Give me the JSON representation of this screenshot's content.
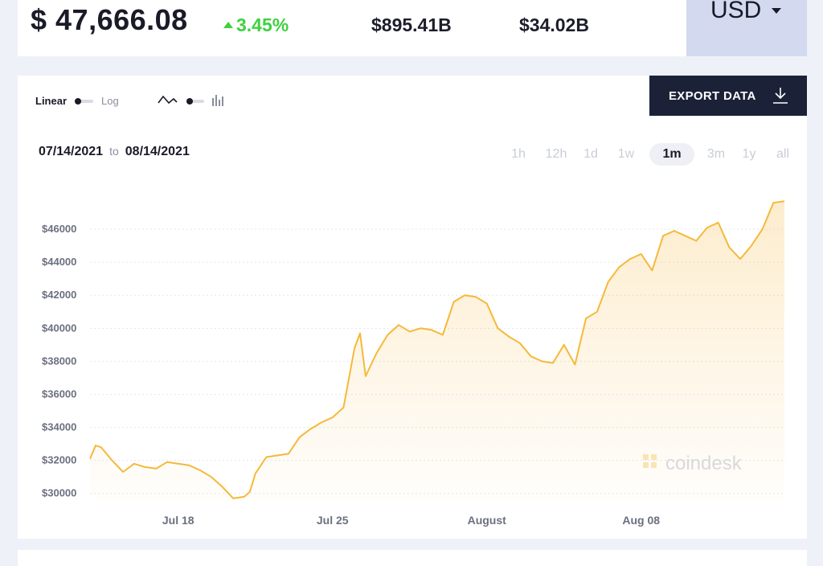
{
  "header": {
    "price": "$ 47,666.08",
    "change": "3.45%",
    "stat1": "$895.41B",
    "stat2": "$34.02B",
    "currency": "USD",
    "change_color": "#3fd13f"
  },
  "controls": {
    "scale_linear": "Linear",
    "scale_log": "Log",
    "export_label": "EXPORT DATA",
    "date_from": "07/14/2021",
    "date_to_word": "to",
    "date_to": "08/14/2021",
    "ranges": [
      "1h",
      "12h",
      "1d",
      "1w",
      "1m",
      "3m",
      "1y",
      "all"
    ],
    "active_range": "1m"
  },
  "watermark": "coindesk",
  "chart_data": {
    "type": "area",
    "line_color": "#f5b93a",
    "ylim": [
      29500,
      48000
    ],
    "yticks": [
      30000,
      32000,
      34000,
      36000,
      38000,
      40000,
      42000,
      44000,
      46000
    ],
    "ytick_labels": [
      "$30000",
      "$32000",
      "$34000",
      "$36000",
      "$38000",
      "$40000",
      "$42000",
      "$44000",
      "$46000"
    ],
    "xticks": [
      "2021-07-18",
      "2021-07-25",
      "2021-08-01",
      "2021-08-08"
    ],
    "xtick_labels": [
      "Jul 18",
      "Jul 25",
      "August",
      "Aug 08"
    ],
    "x": [
      "2021-07-14T00:00",
      "2021-07-14T06:00",
      "2021-07-14T12:00",
      "2021-07-15T00:00",
      "2021-07-15T12:00",
      "2021-07-16T00:00",
      "2021-07-16T12:00",
      "2021-07-17T00:00",
      "2021-07-17T12:00",
      "2021-07-18T00:00",
      "2021-07-18T12:00",
      "2021-07-19T00:00",
      "2021-07-19T12:00",
      "2021-07-20T00:00",
      "2021-07-20T12:00",
      "2021-07-21T00:00",
      "2021-07-21T06:00",
      "2021-07-21T12:00",
      "2021-07-22T00:00",
      "2021-07-22T12:00",
      "2021-07-23T00:00",
      "2021-07-23T12:00",
      "2021-07-24T00:00",
      "2021-07-24T12:00",
      "2021-07-25T00:00",
      "2021-07-25T12:00",
      "2021-07-26T00:00",
      "2021-07-26T06:00",
      "2021-07-26T12:00",
      "2021-07-26T18:00",
      "2021-07-27T00:00",
      "2021-07-27T12:00",
      "2021-07-28T00:00",
      "2021-07-28T12:00",
      "2021-07-29T00:00",
      "2021-07-29T12:00",
      "2021-07-30T00:00",
      "2021-07-30T12:00",
      "2021-07-31T00:00",
      "2021-07-31T12:00",
      "2021-08-01T00:00",
      "2021-08-01T12:00",
      "2021-08-02T00:00",
      "2021-08-02T12:00",
      "2021-08-03T00:00",
      "2021-08-03T12:00",
      "2021-08-04T00:00",
      "2021-08-04T12:00",
      "2021-08-05T00:00",
      "2021-08-05T12:00",
      "2021-08-06T00:00",
      "2021-08-06T12:00",
      "2021-08-07T00:00",
      "2021-08-07T12:00",
      "2021-08-08T00:00",
      "2021-08-08T12:00",
      "2021-08-09T00:00",
      "2021-08-09T12:00",
      "2021-08-10T00:00",
      "2021-08-10T12:00",
      "2021-08-11T00:00",
      "2021-08-11T12:00",
      "2021-08-12T00:00",
      "2021-08-12T12:00",
      "2021-08-13T00:00",
      "2021-08-13T12:00",
      "2021-08-14T00:00",
      "2021-08-14T12:00"
    ],
    "y": [
      32100,
      32900,
      32800,
      32000,
      31300,
      31800,
      31600,
      31500,
      31900,
      31800,
      31700,
      31400,
      31000,
      30400,
      29700,
      29800,
      30100,
      31200,
      32200,
      32300,
      32400,
      33400,
      33900,
      34300,
      34600,
      35200,
      38800,
      39700,
      37100,
      37800,
      38500,
      39600,
      40200,
      39800,
      40000,
      39900,
      39600,
      41600,
      42000,
      41900,
      41500,
      40000,
      39500,
      39100,
      38300,
      38000,
      37900,
      39000,
      37800,
      40600,
      41000,
      42800,
      43700,
      44200,
      44500,
      43500,
      45600,
      45900,
      45600,
      45300,
      46100,
      46400,
      44900,
      44200,
      45000,
      46000,
      47600,
      47700
    ]
  }
}
